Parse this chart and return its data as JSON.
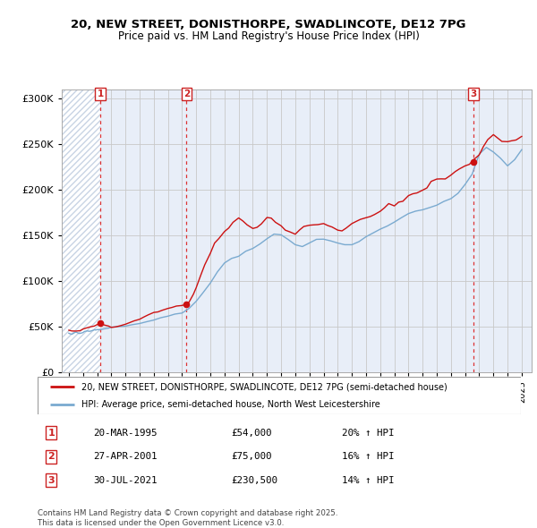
{
  "title1": "20, NEW STREET, DONISTHORPE, SWADLINCOTE, DE12 7PG",
  "title2": "Price paid vs. HM Land Registry's House Price Index (HPI)",
  "ylim": [
    0,
    310000
  ],
  "yticks": [
    0,
    50000,
    100000,
    150000,
    200000,
    250000,
    300000
  ],
  "ytick_labels": [
    "£0",
    "£50K",
    "£100K",
    "£150K",
    "£200K",
    "£250K",
    "£300K"
  ],
  "xlim_start": 1992.5,
  "xlim_end": 2025.7,
  "bg_color": "#e8eef8",
  "hatch_color": "#c8d4e4",
  "grid_color": "#c8c8c8",
  "line_color_property": "#cc1111",
  "line_color_hpi": "#7aaad0",
  "transaction_dates": [
    1995.22,
    2001.32,
    2021.58
  ],
  "transaction_prices": [
    54000,
    75000,
    230500
  ],
  "transaction_labels": [
    "1",
    "2",
    "3"
  ],
  "legend_label_property": "20, NEW STREET, DONISTHORPE, SWADLINCOTE, DE12 7PG (semi-detached house)",
  "legend_label_hpi": "HPI: Average price, semi-detached house, North West Leicestershire",
  "table_rows": [
    [
      "1",
      "20-MAR-1995",
      "£54,000",
      "20% ↑ HPI"
    ],
    [
      "2",
      "27-APR-2001",
      "£75,000",
      "16% ↑ HPI"
    ],
    [
      "3",
      "30-JUL-2021",
      "£230,500",
      "14% ↑ HPI"
    ]
  ],
  "footnote": "Contains HM Land Registry data © Crown copyright and database right 2025.\nThis data is licensed under the Open Government Licence v3.0.",
  "hpi_x": [
    1993.0,
    1993.1,
    1993.2,
    1993.3,
    1993.4,
    1993.5,
    1993.6,
    1993.7,
    1993.8,
    1993.9,
    1994.0,
    1994.1,
    1994.2,
    1994.3,
    1994.4,
    1994.5,
    1994.6,
    1994.7,
    1994.8,
    1994.9,
    1995.0,
    1995.2,
    1995.5,
    1995.8,
    1996.0,
    1996.5,
    1997.0,
    1997.5,
    1998.0,
    1998.5,
    1999.0,
    1999.5,
    2000.0,
    2000.5,
    2001.0,
    2001.5,
    2002.0,
    2002.5,
    2003.0,
    2003.5,
    2004.0,
    2004.5,
    2005.0,
    2005.5,
    2006.0,
    2006.5,
    2007.0,
    2007.5,
    2008.0,
    2008.5,
    2009.0,
    2009.5,
    2010.0,
    2010.5,
    2011.0,
    2011.5,
    2012.0,
    2012.5,
    2013.0,
    2013.5,
    2014.0,
    2014.5,
    2015.0,
    2015.5,
    2016.0,
    2016.5,
    2017.0,
    2017.5,
    2018.0,
    2018.5,
    2019.0,
    2019.5,
    2020.0,
    2020.5,
    2021.0,
    2021.5,
    2022.0,
    2022.5,
    2023.0,
    2023.5,
    2024.0,
    2024.5,
    2025.0
  ],
  "hpi_y": [
    43000,
    42500,
    42000,
    42500,
    43000,
    43500,
    43000,
    42500,
    43000,
    43500,
    44000,
    44200,
    44500,
    44800,
    45000,
    45200,
    45500,
    45800,
    46000,
    46200,
    46500,
    47000,
    47500,
    48000,
    49000,
    50000,
    51000,
    52500,
    54000,
    56000,
    58000,
    60000,
    62000,
    63500,
    65000,
    70000,
    78000,
    88000,
    98000,
    110000,
    120000,
    125000,
    128000,
    132000,
    136000,
    142000,
    148000,
    152000,
    150000,
    145000,
    140000,
    138000,
    142000,
    146000,
    145000,
    143000,
    141000,
    140000,
    141000,
    143000,
    148000,
    152000,
    156000,
    160000,
    163000,
    167000,
    172000,
    176000,
    180000,
    183000,
    185000,
    188000,
    190000,
    195000,
    205000,
    215000,
    238000,
    242000,
    238000,
    232000,
    228000,
    235000,
    245000
  ],
  "prop_x": [
    1993.0,
    1993.2,
    1993.5,
    1993.8,
    1994.0,
    1994.2,
    1994.5,
    1994.8,
    1995.0,
    1995.2,
    1995.5,
    1995.8,
    1996.0,
    1996.3,
    1996.6,
    1997.0,
    1997.3,
    1997.6,
    1998.0,
    1998.3,
    1998.6,
    1999.0,
    1999.3,
    1999.6,
    2000.0,
    2000.3,
    2000.6,
    2001.0,
    2001.3,
    2001.5,
    2001.8,
    2002.0,
    2002.3,
    2002.6,
    2003.0,
    2003.3,
    2003.6,
    2004.0,
    2004.3,
    2004.6,
    2005.0,
    2005.3,
    2005.6,
    2006.0,
    2006.3,
    2006.6,
    2007.0,
    2007.3,
    2007.6,
    2008.0,
    2008.3,
    2008.6,
    2009.0,
    2009.3,
    2009.6,
    2010.0,
    2010.3,
    2010.6,
    2011.0,
    2011.3,
    2011.6,
    2012.0,
    2012.3,
    2012.6,
    2013.0,
    2013.3,
    2013.6,
    2014.0,
    2014.3,
    2014.6,
    2015.0,
    2015.3,
    2015.6,
    2016.0,
    2016.3,
    2016.6,
    2017.0,
    2017.3,
    2017.6,
    2018.0,
    2018.3,
    2018.6,
    2019.0,
    2019.3,
    2019.6,
    2020.0,
    2020.3,
    2020.6,
    2021.0,
    2021.3,
    2021.6,
    2022.0,
    2022.3,
    2022.6,
    2023.0,
    2023.3,
    2023.6,
    2024.0,
    2024.3,
    2024.6,
    2025.0
  ],
  "prop_y": [
    46000,
    45000,
    44500,
    45000,
    47000,
    48000,
    49000,
    50000,
    52000,
    54000,
    52000,
    51000,
    50000,
    51000,
    52500,
    54000,
    55000,
    57000,
    59000,
    61000,
    63000,
    65000,
    67000,
    69000,
    71000,
    72000,
    73000,
    74000,
    75000,
    78000,
    85000,
    92000,
    105000,
    118000,
    132000,
    142000,
    150000,
    158000,
    162000,
    165000,
    168000,
    165000,
    162000,
    160000,
    162000,
    166000,
    170000,
    168000,
    165000,
    162000,
    158000,
    155000,
    152000,
    155000,
    157000,
    160000,
    162000,
    163000,
    162000,
    160000,
    159000,
    158000,
    158000,
    160000,
    162000,
    163000,
    165000,
    168000,
    170000,
    173000,
    175000,
    178000,
    181000,
    184000,
    187000,
    190000,
    193000,
    196000,
    200000,
    203000,
    205000,
    207000,
    210000,
    212000,
    215000,
    217000,
    219000,
    222000,
    226000,
    228000,
    230500,
    238000,
    248000,
    258000,
    265000,
    260000,
    255000,
    252000,
    254000,
    258000,
    262000
  ]
}
